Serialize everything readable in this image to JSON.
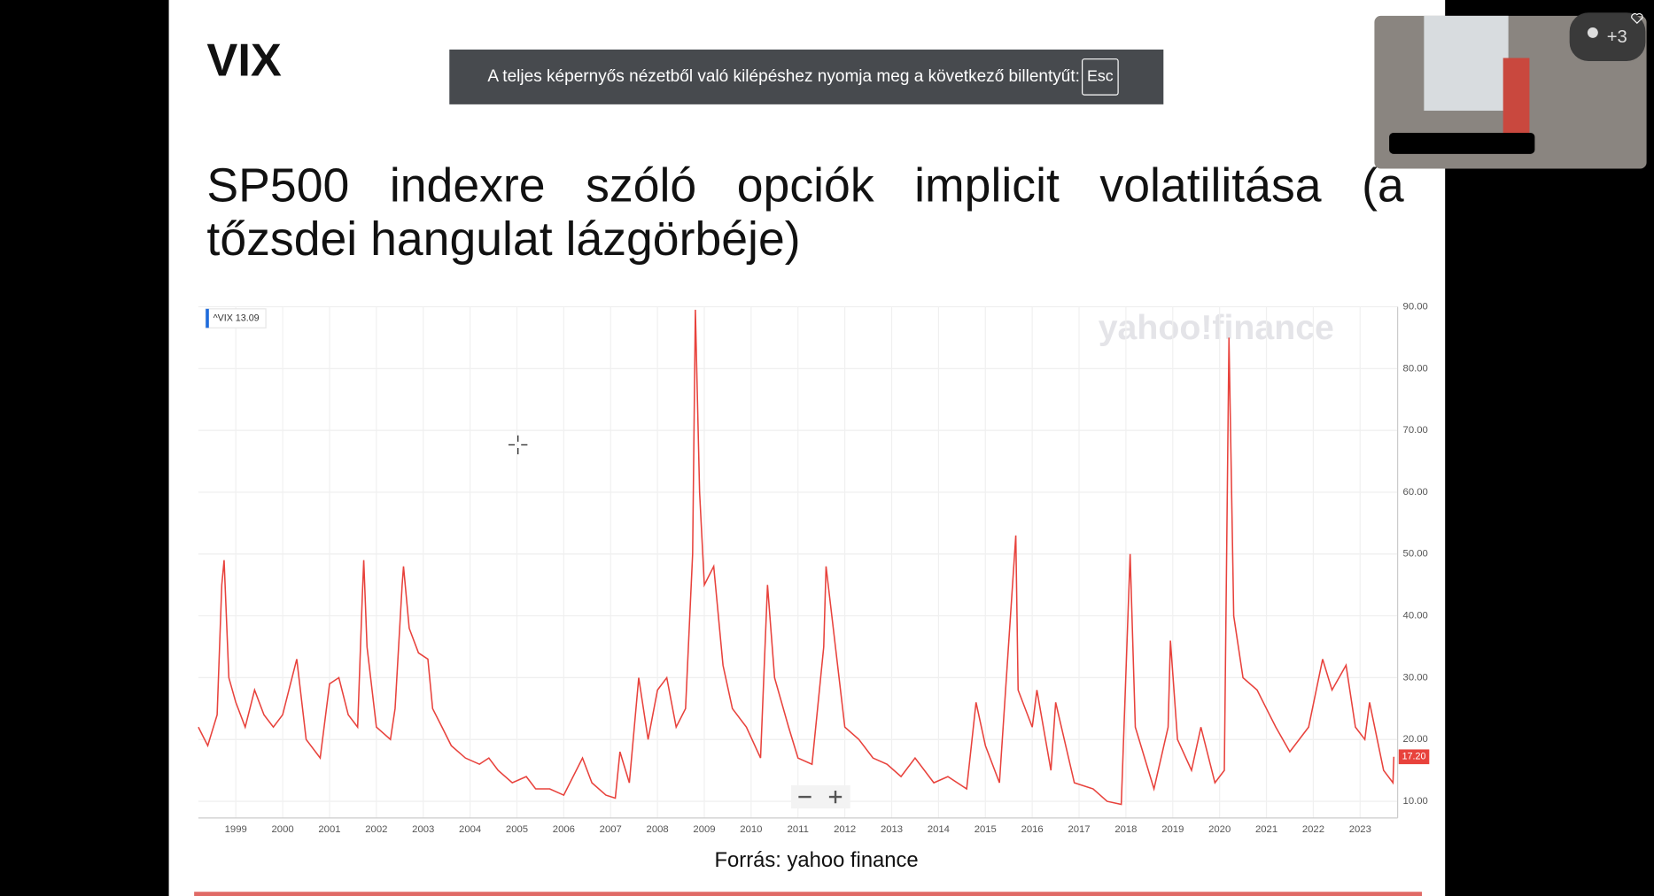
{
  "slide": {
    "title": "VIX",
    "heading": "SP500 indexre szóló opciók implicit volatilitása (a tőzsdei hangulat lázgörbéje)",
    "source": "Forrás: yahoo finance"
  },
  "notice": {
    "text": "A teljes képernyős nézetből való kilépéshez nyomja meg a következő billentyűt:",
    "key": "Esc"
  },
  "participants": {
    "badge": "+3"
  },
  "chart_data": {
    "type": "line",
    "watermark": "yahoo!finance",
    "legend": "^VIX 13.09",
    "color": "#e8423c",
    "last_price": {
      "value": 17.2,
      "label": "17.20"
    },
    "x": [
      1998.2,
      1998.4,
      1998.6,
      1998.7,
      1998.75,
      1998.85,
      1999.0,
      1999.2,
      1999.4,
      1999.6,
      1999.8,
      2000.0,
      2000.2,
      2000.3,
      2000.5,
      2000.8,
      2001.0,
      2001.2,
      2001.4,
      2001.6,
      2001.7,
      2001.73,
      2001.8,
      2002.0,
      2002.3,
      2002.4,
      2002.55,
      2002.58,
      2002.7,
      2002.9,
      2003.1,
      2003.2,
      2003.4,
      2003.6,
      2003.9,
      2004.2,
      2004.4,
      2004.6,
      2004.9,
      2005.2,
      2005.4,
      2005.7,
      2006.0,
      2006.4,
      2006.6,
      2006.9,
      2007.1,
      2007.2,
      2007.4,
      2007.6,
      2007.8,
      2008.0,
      2008.2,
      2008.4,
      2008.6,
      2008.75,
      2008.81,
      2008.9,
      2009.0,
      2009.2,
      2009.4,
      2009.6,
      2009.9,
      2010.2,
      2010.35,
      2010.5,
      2010.8,
      2011.0,
      2011.3,
      2011.55,
      2011.6,
      2011.8,
      2012.0,
      2012.3,
      2012.6,
      2012.9,
      2013.2,
      2013.5,
      2013.9,
      2014.2,
      2014.6,
      2014.8,
      2015.0,
      2015.3,
      2015.65,
      2015.7,
      2016.0,
      2016.1,
      2016.4,
      2016.5,
      2016.9,
      2017.3,
      2017.6,
      2017.9,
      2018.09,
      2018.2,
      2018.6,
      2018.9,
      2018.95,
      2019.1,
      2019.4,
      2019.6,
      2019.9,
      2020.1,
      2020.2,
      2020.3,
      2020.5,
      2020.8,
      2021.0,
      2021.2,
      2021.5,
      2021.9,
      2022.2,
      2022.4,
      2022.7,
      2022.9,
      2023.1,
      2023.2,
      2023.5,
      2023.7,
      2023.72
    ],
    "values": [
      22,
      19,
      24,
      45,
      49,
      30,
      26,
      22,
      28,
      24,
      22,
      24,
      30,
      33,
      20,
      17,
      29,
      30,
      24,
      22,
      43,
      49,
      35,
      22,
      20,
      25,
      45,
      48,
      38,
      34,
      33,
      25,
      22,
      19,
      17,
      16,
      17,
      15,
      13,
      14,
      12,
      12,
      11,
      17,
      13,
      11,
      10.5,
      18,
      13,
      30,
      20,
      28,
      30,
      22,
      25,
      50,
      89.5,
      60,
      45,
      48,
      32,
      25,
      22,
      17,
      45,
      30,
      22,
      17,
      16,
      35,
      48,
      35,
      22,
      20,
      17,
      16,
      14,
      17,
      13,
      14,
      12,
      26,
      19,
      13,
      53,
      28,
      22,
      28,
      15,
      26,
      13,
      12,
      10,
      9.5,
      50,
      22,
      12,
      22,
      36,
      20,
      15,
      22,
      13,
      15,
      85,
      40,
      30,
      28,
      25,
      22,
      18,
      22,
      33,
      28,
      32,
      22,
      20,
      26,
      15,
      13,
      17.2
    ],
    "xlim": [
      1998.2,
      2023.8
    ],
    "ylim": [
      7.3,
      90
    ],
    "xticks": [
      1999,
      2000,
      2001,
      2002,
      2003,
      2004,
      2005,
      2006,
      2007,
      2008,
      2009,
      2010,
      2011,
      2012,
      2013,
      2014,
      2015,
      2016,
      2017,
      2018,
      2019,
      2020,
      2021,
      2022,
      2023
    ],
    "yticks": [
      {
        "value": 10,
        "label": "10.00"
      },
      {
        "value": 20,
        "label": "20.00"
      },
      {
        "value": 30,
        "label": "30.00"
      },
      {
        "value": 40,
        "label": "40.00"
      },
      {
        "value": 50,
        "label": "50.00"
      },
      {
        "value": 60,
        "label": "60.00"
      },
      {
        "value": 70,
        "label": "70.00"
      },
      {
        "value": 80,
        "label": "80.00"
      },
      {
        "value": 90,
        "label": "90.00"
      }
    ],
    "grid": true
  }
}
